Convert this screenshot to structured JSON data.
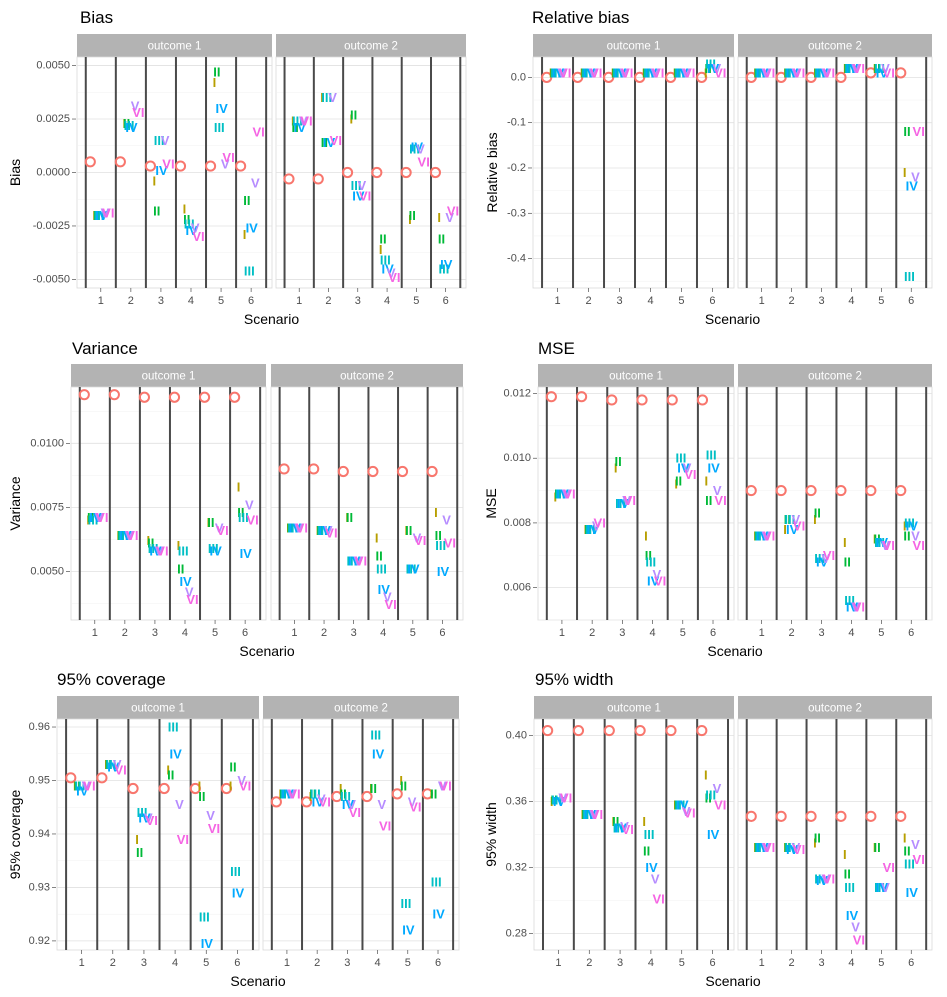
{
  "colors": {
    "O": "#F8766D",
    "I": "#B79F00",
    "II": "#00BA38",
    "III": "#00BFC4",
    "IV": "#00A9FF",
    "V": "#B68CFF",
    "VI": "#F564E3"
  },
  "method_labels": {
    "O": "O",
    "I": "I",
    "II": "II",
    "III": "III",
    "IV": "IV",
    "V": "V",
    "VI": "VI"
  },
  "methods": [
    "O",
    "I",
    "II",
    "III",
    "IV",
    "V",
    "VI"
  ],
  "facets": [
    "outcome 1",
    "outcome 2"
  ],
  "scenarios": [
    1,
    2,
    3,
    4,
    5,
    6
  ],
  "chart_data": [
    {
      "id": "bias",
      "type": "scatter",
      "title": "Bias",
      "xlabel": "Scenario",
      "ylabel": "Bias",
      "ylim": [
        -0.0054,
        0.0054
      ],
      "yticks": [
        -0.005,
        -0.0025,
        0,
        0.0025,
        0.005
      ],
      "ytick_labels": [
        "-0.0050",
        "-0.0025",
        "0.0000",
        "0.0025",
        "0.0050"
      ],
      "series": {
        "outcome 1": {
          "O": [
            0.0005,
            0.0005,
            0.0003,
            0.0003,
            0.0003,
            0.0003
          ],
          "I": [
            -0.002,
            0.0023,
            -0.0004,
            -0.0017,
            0.0042,
            -0.0029
          ],
          "II": [
            -0.002,
            0.0023,
            -0.0018,
            -0.0022,
            0.0047,
            -0.0013
          ],
          "III": [
            -0.002,
            0.0022,
            0.0015,
            -0.0024,
            0.0021,
            -0.0046
          ],
          "IV": [
            -0.002,
            0.0021,
            0.0001,
            -0.0027,
            0.003,
            -0.0026
          ],
          "V": [
            -0.0019,
            0.0031,
            0.0015,
            -0.0026,
            0.0004,
            -0.0005
          ],
          "VI": [
            -0.0019,
            0.0028,
            0.0004,
            -0.003,
            0.0007,
            0.0019
          ]
        },
        "outcome 2": {
          "O": [
            -0.0003,
            -0.0003,
            0.0,
            0.0,
            0.0,
            0.0
          ],
          "I": [
            0.0024,
            0.0035,
            0.0025,
            -0.0036,
            -0.0022,
            -0.0021
          ],
          "II": [
            0.0021,
            0.0014,
            0.0027,
            -0.0031,
            -0.002,
            -0.0031
          ],
          "III": [
            0.0024,
            0.0035,
            -0.0006,
            -0.0041,
            0.0011,
            -0.0045
          ],
          "IV": [
            0.0021,
            0.0014,
            -0.0011,
            -0.0045,
            0.0012,
            -0.0043
          ],
          "V": [
            0.0024,
            0.0035,
            -0.0006,
            -0.0047,
            0.0011,
            -0.0021
          ],
          "VI": [
            0.0024,
            0.0015,
            -0.0011,
            -0.0049,
            0.0005,
            -0.0018
          ]
        }
      }
    },
    {
      "id": "relbias",
      "type": "scatter",
      "title": "Relative bias",
      "xlabel": "Scenario",
      "ylabel": "Relative bias",
      "ylim": [
        -0.465,
        0.045
      ],
      "yticks": [
        0.0,
        -0.1,
        -0.2,
        -0.3,
        -0.4
      ],
      "ytick_labels": [
        "0.0",
        "-0.1",
        "-0.2",
        "-0.3",
        "-0.4"
      ],
      "series": {
        "outcome 1": {
          "O": [
            0.0,
            0.0,
            0.0,
            0.0,
            0.0,
            0.0
          ],
          "I": [
            0.01,
            0.01,
            0.01,
            0.01,
            0.01,
            0.01
          ],
          "II": [
            0.01,
            0.01,
            0.01,
            0.01,
            0.01,
            0.02
          ],
          "III": [
            0.01,
            0.01,
            0.01,
            0.01,
            0.01,
            0.03
          ],
          "IV": [
            0.01,
            0.01,
            0.01,
            0.01,
            0.01,
            0.02
          ],
          "V": [
            0.01,
            0.01,
            0.01,
            0.01,
            0.01,
            0.02
          ],
          "VI": [
            0.01,
            0.01,
            0.01,
            0.01,
            0.01,
            0.01
          ]
        },
        "outcome 2": {
          "O": [
            0.0,
            0.0,
            0.0,
            0.0,
            0.01,
            0.01
          ],
          "I": [
            0.01,
            0.01,
            0.01,
            0.02,
            0.02,
            -0.21
          ],
          "II": [
            0.01,
            0.01,
            0.01,
            0.02,
            0.02,
            -0.12
          ],
          "III": [
            0.01,
            0.01,
            0.01,
            0.02,
            0.02,
            -0.44
          ],
          "IV": [
            0.01,
            0.01,
            0.01,
            0.02,
            0.01,
            -0.24
          ],
          "V": [
            0.01,
            0.01,
            0.01,
            0.02,
            0.02,
            -0.22
          ],
          "VI": [
            0.01,
            0.01,
            0.01,
            0.02,
            0.01,
            -0.12
          ]
        }
      }
    },
    {
      "id": "variance",
      "type": "scatter",
      "title": "Variance",
      "xlabel": "Scenario",
      "ylabel": "Variance",
      "ylim": [
        0.0031,
        0.0122
      ],
      "yticks": [
        0.005,
        0.0075,
        0.01
      ],
      "ytick_labels": [
        "0.0050",
        "0.0075",
        "0.0100"
      ],
      "series": {
        "outcome 1": {
          "O": [
            0.0119,
            0.0119,
            0.0118,
            0.0118,
            0.0118,
            0.0118
          ],
          "I": [
            0.007,
            0.0064,
            0.0062,
            0.006,
            0.0069,
            0.0083
          ],
          "II": [
            0.0071,
            0.0064,
            0.0061,
            0.0051,
            0.0069,
            0.0073
          ],
          "III": [
            0.007,
            0.0064,
            0.0059,
            0.0058,
            0.0059,
            0.0071
          ],
          "IV": [
            0.0071,
            0.0064,
            0.0058,
            0.0046,
            0.0058,
            0.0057
          ],
          "V": [
            0.0071,
            0.0064,
            0.0058,
            0.0042,
            0.0067,
            0.0076
          ],
          "VI": [
            0.0071,
            0.0064,
            0.0058,
            0.0039,
            0.0066,
            0.007
          ]
        },
        "outcome 2": {
          "O": [
            0.009,
            0.009,
            0.0089,
            0.0089,
            0.0089,
            0.0089
          ],
          "I": [
            0.0067,
            0.0066,
            0.0071,
            0.0063,
            0.0066,
            0.0073
          ],
          "II": [
            0.0067,
            0.0066,
            0.0071,
            0.0056,
            0.0066,
            0.0064
          ],
          "III": [
            0.0067,
            0.0066,
            0.0054,
            0.0051,
            0.0051,
            0.006
          ],
          "IV": [
            0.0067,
            0.0066,
            0.0054,
            0.0043,
            0.0051,
            0.005
          ],
          "V": [
            0.0067,
            0.0066,
            0.0054,
            0.004,
            0.0063,
            0.007
          ],
          "VI": [
            0.0067,
            0.0065,
            0.0054,
            0.0037,
            0.0062,
            0.0061
          ]
        }
      }
    },
    {
      "id": "mse",
      "type": "scatter",
      "title": "MSE",
      "xlabel": "Scenario",
      "ylabel": "MSE",
      "ylim": [
        0.005,
        0.0122
      ],
      "yticks": [
        0.006,
        0.008,
        0.01,
        0.012
      ],
      "ytick_labels": [
        "0.006",
        "0.008",
        "0.010",
        "0.012"
      ],
      "series": {
        "outcome 1": {
          "O": [
            0.0119,
            0.0119,
            0.0118,
            0.0118,
            0.0118,
            0.0118
          ],
          "I": [
            0.0088,
            0.0078,
            0.0097,
            0.0076,
            0.0092,
            0.0093
          ],
          "II": [
            0.0089,
            0.0078,
            0.0099,
            0.007,
            0.0093,
            0.0087
          ],
          "III": [
            0.0089,
            0.0078,
            0.0086,
            0.0068,
            0.01,
            0.0101
          ],
          "IV": [
            0.0089,
            0.0078,
            0.0086,
            0.0062,
            0.0097,
            0.0097
          ],
          "V": [
            0.0089,
            0.0079,
            0.0087,
            0.0064,
            0.0097,
            0.009
          ],
          "VI": [
            0.0089,
            0.008,
            0.0087,
            0.0062,
            0.0095,
            0.0087
          ]
        },
        "outcome 2": {
          "O": [
            0.009,
            0.009,
            0.009,
            0.009,
            0.009,
            0.009
          ],
          "I": [
            0.0076,
            0.0078,
            0.0081,
            0.0074,
            0.0075,
            0.0079
          ],
          "II": [
            0.0076,
            0.0081,
            0.0083,
            0.0068,
            0.0075,
            0.0076
          ],
          "III": [
            0.0076,
            0.0081,
            0.0069,
            0.0056,
            0.0074,
            0.008
          ],
          "IV": [
            0.0076,
            0.0078,
            0.0068,
            0.0054,
            0.0074,
            0.0079
          ],
          "V": [
            0.0076,
            0.0081,
            0.0069,
            0.0054,
            0.0073,
            0.0076
          ],
          "VI": [
            0.0076,
            0.0079,
            0.007,
            0.0054,
            0.0073,
            0.0073
          ]
        }
      }
    },
    {
      "id": "coverage",
      "type": "scatter",
      "title": "95% coverage",
      "xlabel": "Scenario",
      "ylabel": "95% coverage",
      "ylim": [
        0.9183,
        0.9615
      ],
      "yticks": [
        0.92,
        0.93,
        0.94,
        0.95,
        0.96
      ],
      "ytick_labels": [
        "0.92",
        "0.93",
        "0.94",
        "0.95",
        "0.96"
      ],
      "series": {
        "outcome 1": {
          "O": [
            0.9505,
            0.9505,
            0.9485,
            0.9485,
            0.9485,
            0.9485
          ],
          "I": [
            0.949,
            0.953,
            0.939,
            0.952,
            0.949,
            0.949
          ],
          "II": [
            0.949,
            0.953,
            0.9365,
            0.951,
            0.947,
            0.9525
          ],
          "III": [
            0.949,
            0.953,
            0.944,
            0.96,
            0.9245,
            0.933
          ],
          "IV": [
            0.948,
            0.9525,
            0.943,
            0.955,
            0.9195,
            0.929
          ],
          "V": [
            0.949,
            0.953,
            0.943,
            0.9455,
            0.9435,
            0.95
          ],
          "VI": [
            0.949,
            0.952,
            0.9425,
            0.939,
            0.941,
            0.949
          ]
        },
        "outcome 2": {
          "O": [
            0.946,
            0.946,
            0.947,
            0.947,
            0.9475,
            0.9475
          ],
          "I": [
            0.9475,
            0.947,
            0.9485,
            0.9485,
            0.95,
            0.9475
          ],
          "II": [
            0.9475,
            0.9475,
            0.9475,
            0.9485,
            0.949,
            0.9475
          ],
          "III": [
            0.9475,
            0.9475,
            0.947,
            0.9585,
            0.927,
            0.931
          ],
          "IV": [
            0.9475,
            0.946,
            0.9455,
            0.955,
            0.922,
            0.925
          ],
          "V": [
            0.9475,
            0.9465,
            0.9455,
            0.9455,
            0.946,
            0.949
          ],
          "VI": [
            0.9475,
            0.946,
            0.944,
            0.9415,
            0.945,
            0.949
          ]
        }
      }
    },
    {
      "id": "width",
      "type": "scatter",
      "title": "95% width",
      "xlabel": "Scenario",
      "ylabel": "95% width",
      "ylim": [
        0.27,
        0.41
      ],
      "yticks": [
        0.28,
        0.32,
        0.36,
        0.4
      ],
      "ytick_labels": [
        "0.28",
        "0.32",
        "0.36",
        "0.40"
      ],
      "series": {
        "outcome 1": {
          "O": [
            0.403,
            0.403,
            0.403,
            0.403,
            0.403,
            0.403
          ],
          "I": [
            0.36,
            0.352,
            0.348,
            0.348,
            0.358,
            0.376
          ],
          "II": [
            0.361,
            0.352,
            0.348,
            0.33,
            0.358,
            0.362
          ],
          "III": [
            0.361,
            0.352,
            0.344,
            0.34,
            0.358,
            0.364
          ],
          "IV": [
            0.36,
            0.352,
            0.344,
            0.32,
            0.358,
            0.34
          ],
          "V": [
            0.362,
            0.352,
            0.345,
            0.313,
            0.354,
            0.368
          ],
          "VI": [
            0.362,
            0.352,
            0.343,
            0.301,
            0.353,
            0.358
          ]
        },
        "outcome 2": {
          "O": [
            0.351,
            0.351,
            0.351,
            0.351,
            0.351,
            0.351
          ],
          "I": [
            0.332,
            0.332,
            0.335,
            0.328,
            0.332,
            0.338
          ],
          "II": [
            0.332,
            0.332,
            0.338,
            0.316,
            0.332,
            0.33
          ],
          "III": [
            0.332,
            0.332,
            0.313,
            0.308,
            0.308,
            0.322
          ],
          "IV": [
            0.332,
            0.331,
            0.312,
            0.291,
            0.308,
            0.305
          ],
          "V": [
            0.332,
            0.332,
            0.313,
            0.284,
            0.308,
            0.334
          ],
          "VI": [
            0.332,
            0.331,
            0.313,
            0.276,
            0.32,
            0.325
          ]
        }
      }
    }
  ]
}
